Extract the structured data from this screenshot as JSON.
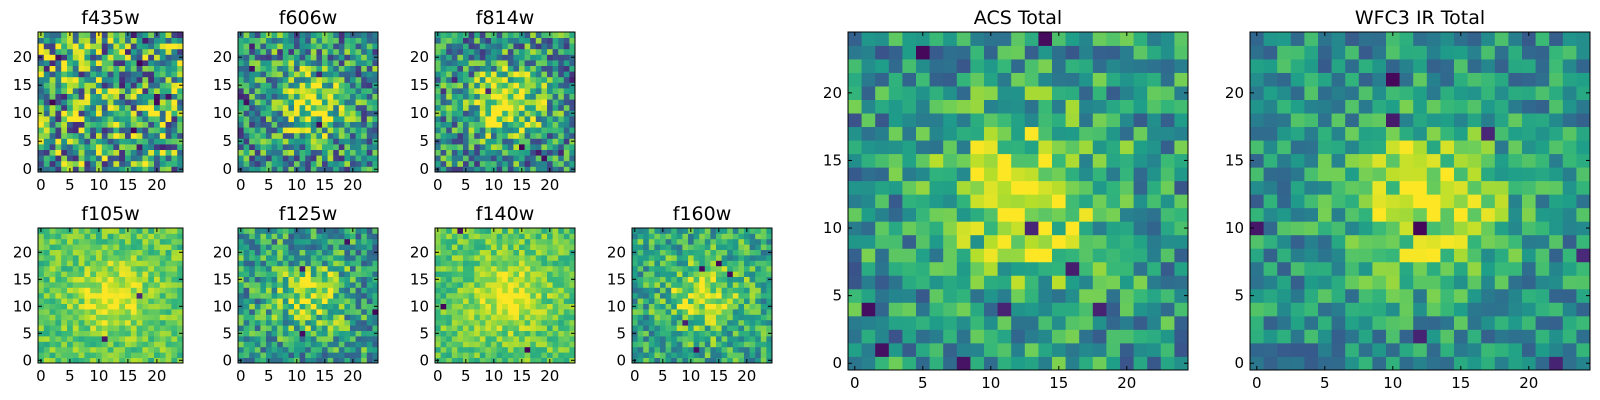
{
  "chart_data": {
    "type": "heatmap",
    "colormap": "viridis",
    "grid": false,
    "legend": "none",
    "panels": [
      {
        "id": "f435w",
        "title": "f435w",
        "xticks": [
          "0",
          "5",
          "10",
          "15",
          "20"
        ],
        "yticks": [
          "0",
          "5",
          "10",
          "15",
          "20"
        ],
        "xlim": [
          -0.5,
          24.5
        ],
        "ylim": [
          -0.5,
          24.5
        ],
        "source": {
          "seed": 11,
          "peak": 0.05,
          "noise": 0.95,
          "base": 0.58,
          "dark": 14
        }
      },
      {
        "id": "f606w",
        "title": "f606w",
        "xticks": [
          "0",
          "5",
          "10",
          "15",
          "20"
        ],
        "yticks": [
          "0",
          "5",
          "10",
          "15",
          "20"
        ],
        "xlim": [
          -0.5,
          24.5
        ],
        "ylim": [
          -0.5,
          24.5
        ],
        "source": {
          "seed": 23,
          "peak": 0.45,
          "noise": 0.75,
          "base": 0.5,
          "dark": 6
        }
      },
      {
        "id": "f814w",
        "title": "f814w",
        "xticks": [
          "0",
          "5",
          "10",
          "15",
          "20"
        ],
        "yticks": [
          "0",
          "5",
          "10",
          "15",
          "20"
        ],
        "xlim": [
          -0.5,
          24.5
        ],
        "ylim": [
          -0.5,
          24.5
        ],
        "source": {
          "seed": 37,
          "peak": 0.5,
          "noise": 0.72,
          "base": 0.5,
          "dark": 7
        }
      },
      {
        "id": "f105w",
        "title": "f105w",
        "xticks": [
          "0",
          "5",
          "10",
          "15",
          "20"
        ],
        "yticks": [
          "0",
          "5",
          "10",
          "15",
          "20"
        ],
        "xlim": [
          -0.5,
          24.5
        ],
        "ylim": [
          -0.5,
          24.5
        ],
        "source": {
          "seed": 41,
          "peak": 0.25,
          "noise": 0.3,
          "base": 0.74,
          "dark": 2
        }
      },
      {
        "id": "f125w",
        "title": "f125w",
        "xticks": [
          "0",
          "5",
          "10",
          "15",
          "20"
        ],
        "yticks": [
          "0",
          "5",
          "10",
          "15",
          "20"
        ],
        "xlim": [
          -0.5,
          24.5
        ],
        "ylim": [
          -0.5,
          24.5
        ],
        "source": {
          "seed": 53,
          "peak": 0.35,
          "noise": 0.6,
          "base": 0.55,
          "dark": 4
        }
      },
      {
        "id": "f140w",
        "title": "f140w",
        "xticks": [
          "0",
          "5",
          "10",
          "15",
          "20"
        ],
        "yticks": [
          "0",
          "5",
          "10",
          "15",
          "20"
        ],
        "xlim": [
          -0.5,
          24.5
        ],
        "ylim": [
          -0.5,
          24.5
        ],
        "source": {
          "seed": 67,
          "peak": 0.25,
          "noise": 0.3,
          "base": 0.74,
          "dark": 3
        }
      },
      {
        "id": "f160w",
        "title": "f160w",
        "xticks": [
          "0",
          "5",
          "10",
          "15",
          "20"
        ],
        "yticks": [
          "0",
          "5",
          "10",
          "15",
          "20"
        ],
        "xlim": [
          -0.5,
          24.5
        ],
        "ylim": [
          -0.5,
          24.5
        ],
        "source": {
          "seed": 79,
          "peak": 0.35,
          "noise": 0.5,
          "base": 0.6,
          "dark": 5
        }
      },
      {
        "id": "acs-total",
        "title": "ACS Total",
        "xticks": [
          "0",
          "5",
          "10",
          "15",
          "20"
        ],
        "yticks": [
          "0",
          "5",
          "10",
          "15",
          "20"
        ],
        "xlim": [
          -0.5,
          24.5
        ],
        "ylim": [
          -0.5,
          24.5
        ],
        "source": {
          "seed": 89,
          "peak": 0.45,
          "noise": 0.55,
          "base": 0.52,
          "dark": 9
        }
      },
      {
        "id": "wfc3-ir-total",
        "title": "WFC3 IR Total",
        "xticks": [
          "0",
          "5",
          "10",
          "15",
          "20"
        ],
        "yticks": [
          "0",
          "5",
          "10",
          "15",
          "20"
        ],
        "xlim": [
          -0.5,
          24.5
        ],
        "ylim": [
          -0.5,
          24.5
        ],
        "source": {
          "seed": 97,
          "peak": 0.45,
          "noise": 0.45,
          "base": 0.5,
          "dark": 8
        }
      }
    ]
  }
}
